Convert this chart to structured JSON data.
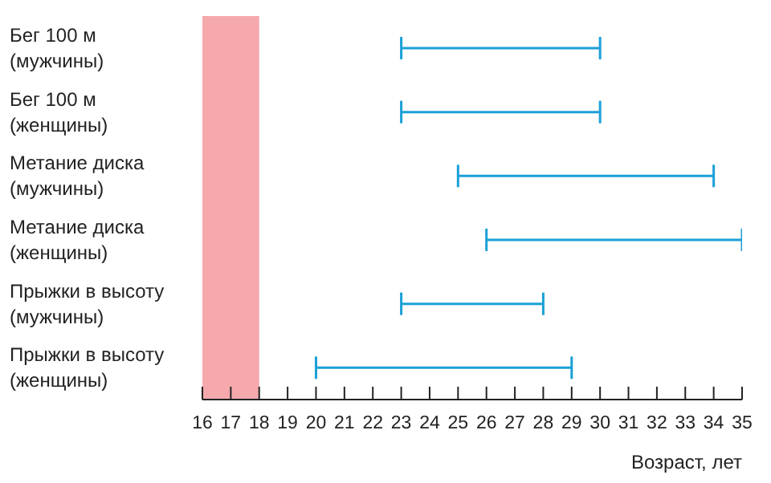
{
  "chart_data": {
    "type": "bar",
    "orientation": "horizontal",
    "xlabel": "Возраст, лет",
    "categories": [
      "Бег 100 м\n(мужчины)",
      "Бег 100 м\n(женщины)",
      "Метание диска\n(мужчины)",
      "Метание диска\n(женщины)",
      "Прыжки в высоту\n(мужчины)",
      "Прыжки в высоту\n(женщины)"
    ],
    "base": [
      23,
      23,
      25,
      26,
      23,
      20
    ],
    "values": [
      7,
      7,
      9,
      9,
      5,
      9
    ],
    "color": "#1ba0d7",
    "xlim": [
      16,
      35
    ],
    "xticks": [
      16,
      17,
      18,
      19,
      20,
      21,
      22,
      23,
      24,
      25,
      26,
      27,
      28,
      29,
      30,
      31,
      32,
      33,
      34,
      35
    ],
    "bands": [
      {
        "axis": "x",
        "from": 16,
        "to": 18,
        "color": "#f5a9ad"
      }
    ]
  }
}
